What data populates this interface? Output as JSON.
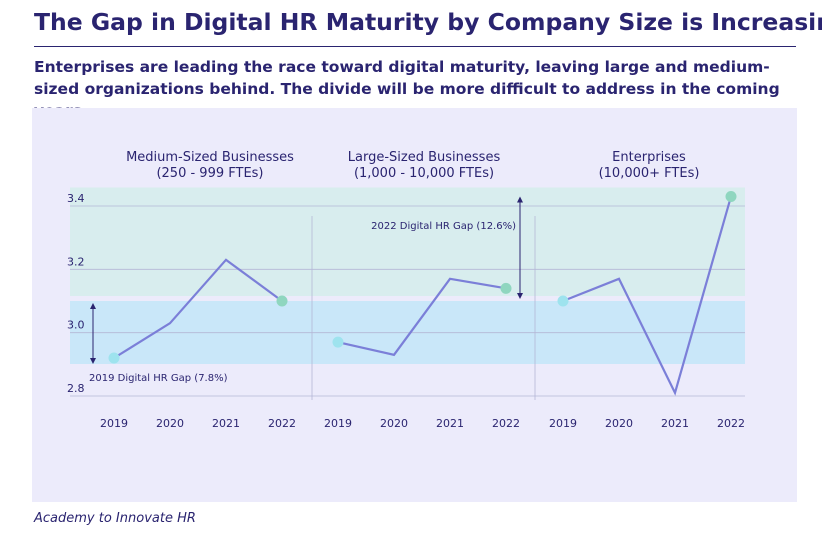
{
  "title": "The Gap in Digital HR Maturity by Company Size is Increasing",
  "subtitle": "Enterprises are leading the race toward digital maturity, leaving large and medium-sized organizations behind. The divide will be more difficult to address in the coming years.",
  "source": "Academy to Innovate HR",
  "colors": {
    "title": "#2a2470",
    "line": "#7b7fd8",
    "first_point": "#9ee3ee",
    "last_point": "#8fd6bf",
    "panel": "#ecebfb",
    "band_2019": "#c9e7f9",
    "band_2022": "#d8edee",
    "gridline": "#b4b7d6"
  },
  "chart_data": {
    "type": "line",
    "ylim": [
      2.8,
      3.4
    ],
    "yticks": [
      "2.8",
      "3.0",
      "3.2",
      "3.4"
    ],
    "categories": [
      "2019",
      "2020",
      "2021",
      "2022"
    ],
    "series": [
      {
        "name": "Medium-Sized Businesses",
        "subtitle": "(250 - 999 FTEs)",
        "values": [
          2.92,
          3.03,
          3.23,
          3.1
        ]
      },
      {
        "name": "Large-Sized Businesses",
        "subtitle": "(1,000 - 10,000 FTEs)",
        "values": [
          2.97,
          2.93,
          3.17,
          3.14
        ]
      },
      {
        "name": "Enterprises",
        "subtitle": "(10,000+ FTEs)",
        "values": [
          3.1,
          3.17,
          2.81,
          3.43
        ]
      }
    ],
    "bands": [
      {
        "label": "2019 Digital HR Gap (7.8%)",
        "from": 2.92,
        "to": 3.1
      },
      {
        "label": "2022 Digital HR Gap (12.6%)",
        "from": 3.1,
        "to": 3.43
      }
    ]
  }
}
